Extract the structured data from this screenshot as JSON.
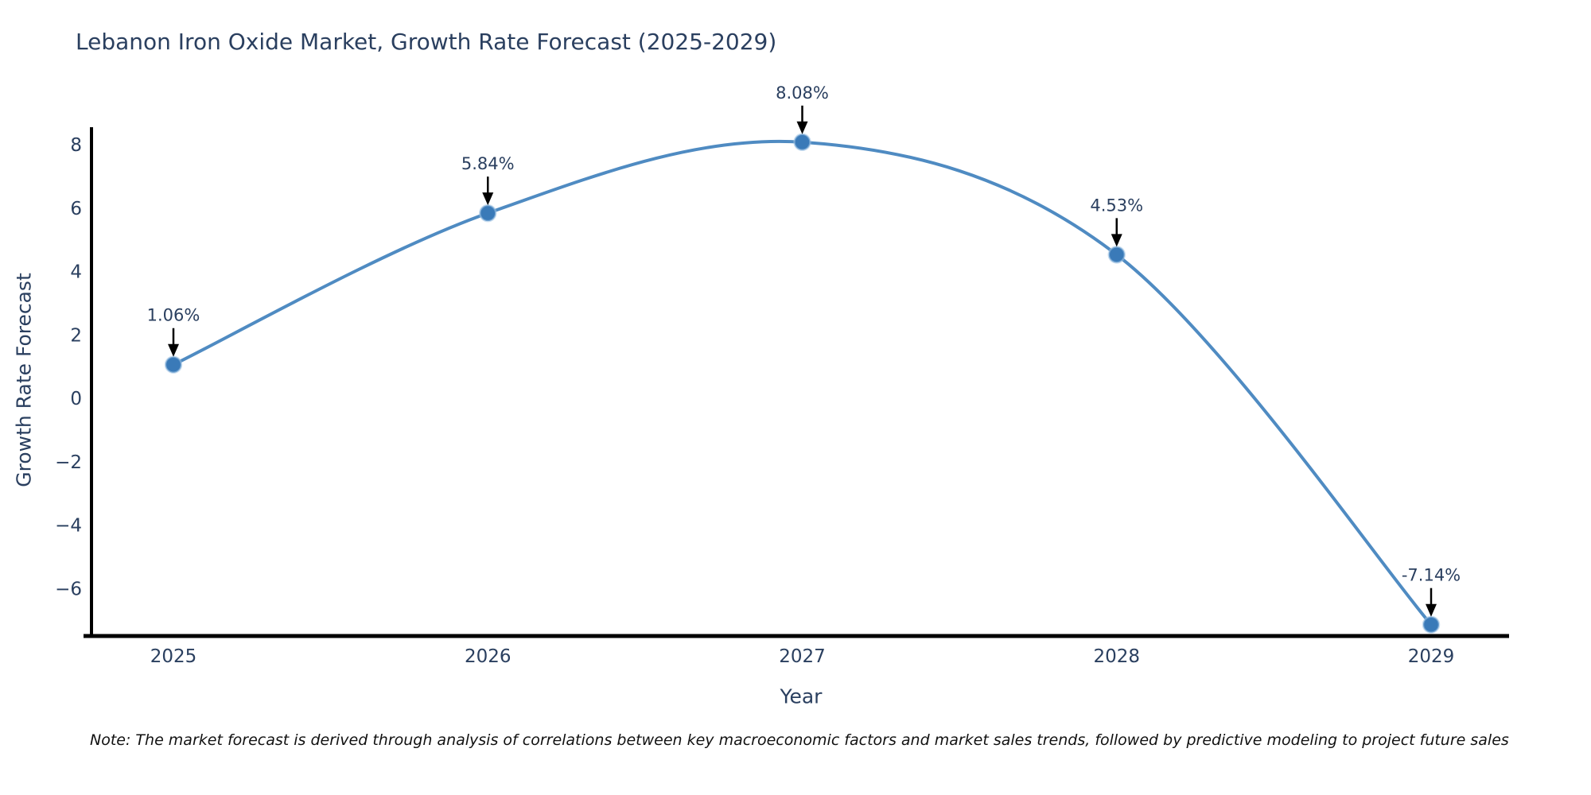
{
  "title": "Lebanon Iron Oxide Market, Growth Rate Forecast (2025-2029)",
  "note": "Note: The market forecast is derived through analysis of correlations between key macroeconomic factors and market sales trends, followed by predictive modeling to project future sales",
  "colors": {
    "line": "#4f8bc2",
    "marker": "#3a7ab8",
    "marker_halo": "#9fc3e3",
    "axis_line": "#000000",
    "tick_text": "#2a3f5f",
    "annotation_text": "#2a3f5f",
    "arrow": "#000000",
    "background": "#ffffff"
  },
  "chart_data": {
    "type": "line",
    "line_shape": "spline",
    "title": "Lebanon Iron Oxide Market, Growth Rate Forecast (2025-2029)",
    "xlabel": "Year",
    "ylabel": "Growth Rate Forecast",
    "x": [
      2025,
      2026,
      2027,
      2028,
      2029
    ],
    "values": [
      1.06,
      5.84,
      8.08,
      4.53,
      -7.14
    ],
    "point_labels": [
      "1.06%",
      "5.84%",
      "8.08%",
      "4.53%",
      "-7.14%"
    ],
    "x_ticks": [
      {
        "value": 2025,
        "label": "2025"
      },
      {
        "value": 2026,
        "label": "2026"
      },
      {
        "value": 2027,
        "label": "2027"
      },
      {
        "value": 2028,
        "label": "2028"
      },
      {
        "value": 2029,
        "label": "2029"
      }
    ],
    "y_ticks": [
      {
        "value": 8,
        "label": "8"
      },
      {
        "value": 6,
        "label": "6"
      },
      {
        "value": 4,
        "label": "4"
      },
      {
        "value": 2,
        "label": "2"
      },
      {
        "value": 0,
        "label": "0"
      },
      {
        "value": -2,
        "label": "−2"
      },
      {
        "value": -4,
        "label": "−4"
      },
      {
        "value": -6,
        "label": "−6"
      }
    ],
    "xlim": [
      2024.73,
      2029.25
    ],
    "ylim": [
      -7.6,
      8.55
    ],
    "grid": false,
    "legend_position": "none",
    "annotations_style": "value label with down arrow to each marker"
  }
}
